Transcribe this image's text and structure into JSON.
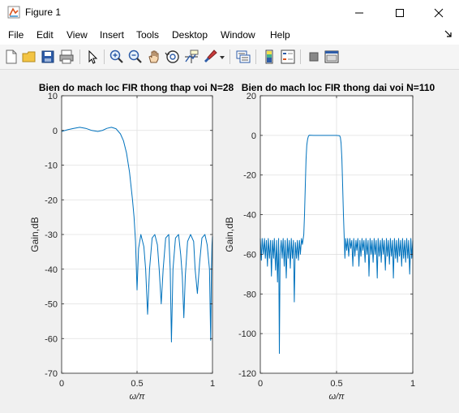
{
  "window": {
    "title": "Figure 1",
    "controls": [
      "minimize",
      "maximize",
      "close"
    ]
  },
  "menu": {
    "items": [
      "File",
      "Edit",
      "View",
      "Insert",
      "Tools",
      "Desktop",
      "Window",
      "Help"
    ]
  },
  "toolbar": {
    "icons": [
      "new-figure-icon",
      "open-file-icon",
      "save-icon",
      "print-icon",
      "pointer-icon",
      "zoom-in-icon",
      "zoom-out-icon",
      "pan-icon",
      "rotate-icon",
      "data-cursor-icon",
      "brush-icon",
      "brush-dropdown-icon",
      "link-plot-icon",
      "insert-colorbar-icon",
      "insert-legend-icon",
      "hide-plot-tools-icon",
      "show-plot-tools-icon"
    ]
  },
  "colors": {
    "line": "#0072bd",
    "grid": "#e0e0e0",
    "axes_bg": "#ffffff"
  },
  "chart_data": [
    {
      "type": "line",
      "title": "Bien do mach loc FIR thong thap voi N=28",
      "xlabel": "ω/π",
      "ylabel": "Gain,dB",
      "xlim": [
        0,
        1
      ],
      "ylim": [
        -70,
        10
      ],
      "xticks": [
        0,
        0.5,
        1
      ],
      "xtick_labels": [
        "0",
        "0.5",
        "1"
      ],
      "yticks": [
        10,
        0,
        -10,
        -20,
        -30,
        -40,
        -50,
        -60,
        -70
      ],
      "grid": true,
      "series": [
        {
          "points": [
            [
              0,
              -0.3
            ],
            [
              0.04,
              0.2
            ],
            [
              0.08,
              0.6
            ],
            [
              0.12,
              0.9
            ],
            [
              0.16,
              0.6
            ],
            [
              0.2,
              0.0
            ],
            [
              0.24,
              -0.3
            ],
            [
              0.27,
              0.0
            ],
            [
              0.3,
              0.6
            ],
            [
              0.33,
              0.9
            ],
            [
              0.36,
              0.5
            ],
            [
              0.39,
              -1.0
            ],
            [
              0.41,
              -3.0
            ],
            [
              0.43,
              -6.5
            ],
            [
              0.45,
              -12.0
            ],
            [
              0.47,
              -20.0
            ],
            [
              0.48,
              -25.0
            ],
            [
              0.49,
              -32.0
            ],
            [
              0.5,
              -46.0
            ],
            [
              0.51,
              -34.0
            ],
            [
              0.525,
              -30.0
            ],
            [
              0.545,
              -33.5
            ],
            [
              0.557,
              -40.0
            ],
            [
              0.57,
              -53.0
            ],
            [
              0.583,
              -40.0
            ],
            [
              0.6,
              -31.0
            ],
            [
              0.618,
              -30.0
            ],
            [
              0.635,
              -33.0
            ],
            [
              0.647,
              -40.0
            ],
            [
              0.66,
              -50.0
            ],
            [
              0.673,
              -40.0
            ],
            [
              0.69,
              -31.0
            ],
            [
              0.71,
              -30.0
            ],
            [
              0.72,
              -40.0
            ],
            [
              0.728,
              -61.0
            ],
            [
              0.738,
              -40.0
            ],
            [
              0.755,
              -31.0
            ],
            [
              0.775,
              -30.0
            ],
            [
              0.79,
              -36.0
            ],
            [
              0.8,
              -42.0
            ],
            [
              0.81,
              -54.0
            ],
            [
              0.82,
              -42.0
            ],
            [
              0.835,
              -32.0
            ],
            [
              0.855,
              -30.0
            ],
            [
              0.875,
              -32.0
            ],
            [
              0.885,
              -40.0
            ],
            [
              0.9,
              -47.0
            ],
            [
              0.915,
              -38.0
            ],
            [
              0.93,
              -31.0
            ],
            [
              0.95,
              -30.0
            ],
            [
              0.965,
              -33.0
            ],
            [
              0.98,
              -40.0
            ],
            [
              0.988,
              -60.5
            ],
            [
              0.993,
              -40.0
            ],
            [
              0.997,
              -33.0
            ],
            [
              1.0,
              -30.5
            ]
          ]
        }
      ]
    },
    {
      "type": "line",
      "title": "Bien do mach loc FIR thong dai voi N=110",
      "xlabel": "ω/π",
      "ylabel": "Gain,dB",
      "xlim": [
        0,
        1
      ],
      "ylim": [
        -120,
        20
      ],
      "xticks": [
        0,
        0.5,
        1
      ],
      "xtick_labels": [
        "0",
        "0.5",
        "1"
      ],
      "yticks": [
        20,
        0,
        -20,
        -40,
        -60,
        -80,
        -100,
        -120
      ],
      "grid": true,
      "series": [
        {
          "points": [
            [
              0.0,
              -52
            ],
            [
              0.007,
              -63
            ],
            [
              0.012,
              -52
            ],
            [
              0.02,
              -60
            ],
            [
              0.027,
              -52
            ],
            [
              0.033,
              -62
            ],
            [
              0.04,
              -53
            ],
            [
              0.047,
              -66
            ],
            [
              0.052,
              -52
            ],
            [
              0.06,
              -62
            ],
            [
              0.067,
              -53
            ],
            [
              0.073,
              -71
            ],
            [
              0.08,
              -53
            ],
            [
              0.087,
              -62
            ],
            [
              0.092,
              -52
            ],
            [
              0.1,
              -68
            ],
            [
              0.107,
              -53
            ],
            [
              0.113,
              -74
            ],
            [
              0.12,
              -52
            ],
            [
              0.125,
              -110
            ],
            [
              0.13,
              -60
            ],
            [
              0.137,
              -53
            ],
            [
              0.143,
              -62
            ],
            [
              0.15,
              -52
            ],
            [
              0.157,
              -66
            ],
            [
              0.163,
              -53
            ],
            [
              0.17,
              -72
            ],
            [
              0.177,
              -52
            ],
            [
              0.183,
              -62
            ],
            [
              0.19,
              -53
            ],
            [
              0.197,
              -67
            ],
            [
              0.203,
              -52
            ],
            [
              0.21,
              -62
            ],
            [
              0.217,
              -53
            ],
            [
              0.223,
              -84
            ],
            [
              0.23,
              -54
            ],
            [
              0.237,
              -62
            ],
            [
              0.243,
              -53
            ],
            [
              0.25,
              -63
            ],
            [
              0.257,
              -53
            ],
            [
              0.263,
              -60
            ],
            [
              0.27,
              -52
            ],
            [
              0.276,
              -55
            ],
            [
              0.28,
              -53
            ],
            [
              0.285,
              -50
            ],
            [
              0.29,
              -40
            ],
            [
              0.295,
              -25
            ],
            [
              0.3,
              -12
            ],
            [
              0.305,
              -5
            ],
            [
              0.31,
              -2
            ],
            [
              0.315,
              -0.6
            ],
            [
              0.32,
              0.1
            ],
            [
              0.35,
              0.0
            ],
            [
              0.4,
              0.0
            ],
            [
              0.45,
              0.0
            ],
            [
              0.5,
              0.0
            ],
            [
              0.52,
              -0.2
            ],
            [
              0.525,
              -1
            ],
            [
              0.53,
              -4
            ],
            [
              0.535,
              -12
            ],
            [
              0.54,
              -25
            ],
            [
              0.545,
              -40
            ],
            [
              0.55,
              -51
            ],
            [
              0.555,
              -62
            ],
            [
              0.56,
              -52
            ],
            [
              0.567,
              -58
            ],
            [
              0.573,
              -52
            ],
            [
              0.58,
              -61
            ],
            [
              0.587,
              -52
            ],
            [
              0.593,
              -57
            ],
            [
              0.6,
              -53
            ],
            [
              0.607,
              -66
            ],
            [
              0.613,
              -52
            ],
            [
              0.62,
              -61
            ],
            [
              0.627,
              -53
            ],
            [
              0.633,
              -58
            ],
            [
              0.64,
              -52
            ],
            [
              0.647,
              -66
            ],
            [
              0.653,
              -53
            ],
            [
              0.66,
              -61
            ],
            [
              0.667,
              -52
            ],
            [
              0.673,
              -58
            ],
            [
              0.68,
              -53
            ],
            [
              0.687,
              -64
            ],
            [
              0.693,
              -52
            ],
            [
              0.7,
              -60
            ],
            [
              0.707,
              -53
            ],
            [
              0.713,
              -71
            ],
            [
              0.72,
              -52
            ],
            [
              0.727,
              -60
            ],
            [
              0.733,
              -53
            ],
            [
              0.74,
              -64
            ],
            [
              0.747,
              -52
            ],
            [
              0.753,
              -60
            ],
            [
              0.76,
              -53
            ],
            [
              0.767,
              -72
            ],
            [
              0.773,
              -52
            ],
            [
              0.78,
              -61
            ],
            [
              0.787,
              -53
            ],
            [
              0.793,
              -64
            ],
            [
              0.8,
              -52
            ],
            [
              0.807,
              -60
            ],
            [
              0.813,
              -53
            ],
            [
              0.82,
              -68
            ],
            [
              0.827,
              -52
            ],
            [
              0.833,
              -61
            ],
            [
              0.84,
              -53
            ],
            [
              0.847,
              -65
            ],
            [
              0.853,
              -52
            ],
            [
              0.86,
              -61
            ],
            [
              0.867,
              -53
            ],
            [
              0.873,
              -72
            ],
            [
              0.88,
              -52
            ],
            [
              0.887,
              -62
            ],
            [
              0.893,
              -53
            ],
            [
              0.9,
              -64
            ],
            [
              0.907,
              -52
            ],
            [
              0.913,
              -61
            ],
            [
              0.92,
              -53
            ],
            [
              0.927,
              -66
            ],
            [
              0.933,
              -52
            ],
            [
              0.94,
              -62
            ],
            [
              0.947,
              -53
            ],
            [
              0.953,
              -64
            ],
            [
              0.96,
              -52
            ],
            [
              0.967,
              -62
            ],
            [
              0.973,
              -53
            ],
            [
              0.98,
              -70
            ],
            [
              0.987,
              -52
            ],
            [
              0.993,
              -62
            ],
            [
              1.0,
              -53
            ]
          ]
        }
      ]
    }
  ]
}
